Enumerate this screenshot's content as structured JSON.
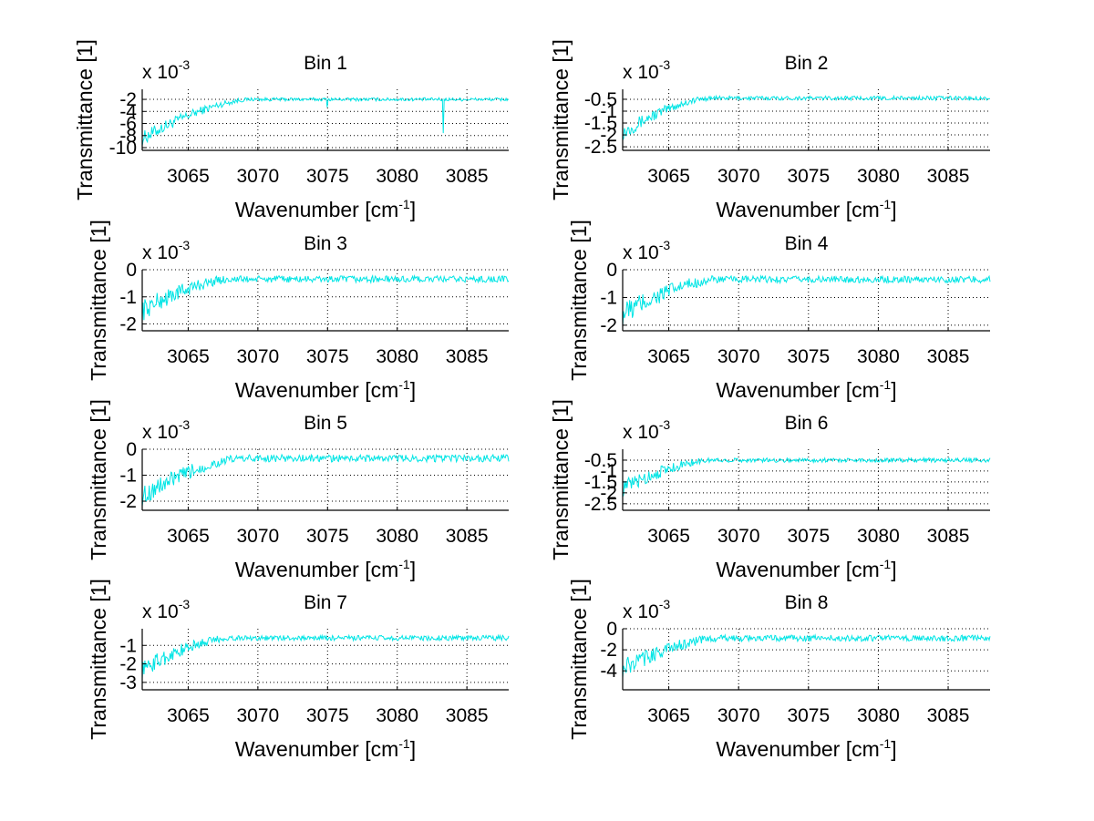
{
  "chart_data": [
    {
      "type": "line",
      "title": "Bin 1",
      "xlabel": "Wavenumber [cm-1]",
      "xlabel_main": "Wavenumber [cm",
      "xlabel_sup": "-1",
      "xlabel_end": "]",
      "ylabel": "Transmittance [1]",
      "y_multiplier": "x 10",
      "y_multiplier_exp": "-3",
      "xlim": [
        3061.7,
        3088.0
      ],
      "ylim": [
        -10.45,
        -0.33
      ],
      "xticks": [
        3065,
        3070,
        3075,
        3080,
        3085
      ],
      "xtick_labels": [
        "3065",
        "3070",
        "3075",
        "3080",
        "3085"
      ],
      "yticks": [
        -2,
        -4,
        -6,
        -8,
        -10
      ],
      "ytick_labels": [
        "-2",
        "-4",
        "-6",
        "-8",
        "-10"
      ],
      "grid": true,
      "line_color": "#00e5e5",
      "profile": {
        "start": -8.5,
        "plateau": -2.0,
        "rise_end": 3069.5,
        "noise_early": 2.4,
        "noise_late": 0.55,
        "dips": [
          [
            3075.0,
            -3.3
          ],
          [
            3083.3,
            -7.6
          ]
        ]
      }
    },
    {
      "type": "line",
      "title": "Bin 2",
      "xlabel": "Wavenumber [cm-1]",
      "xlabel_main": "Wavenumber [cm",
      "xlabel_sup": "-1",
      "xlabel_end": "]",
      "ylabel": "Transmittance [1]",
      "y_multiplier": "x 10",
      "y_multiplier_exp": "-3",
      "xlim": [
        3061.7,
        3088.0
      ],
      "ylim": [
        -2.65,
        -0.08
      ],
      "xticks": [
        3065,
        3070,
        3075,
        3080,
        3085
      ],
      "xtick_labels": [
        "3065",
        "3070",
        "3075",
        "3080",
        "3085"
      ],
      "yticks": [
        -0.5,
        -1,
        -1.5,
        -2,
        -2.5
      ],
      "ytick_labels": [
        "-0.5",
        "-1",
        "-1.5",
        "-2",
        "-2.5"
      ],
      "grid": true,
      "line_color": "#00e5e5",
      "profile": {
        "start": -1.9,
        "plateau": -0.45,
        "rise_end": 3068.0,
        "noise_early": 0.65,
        "noise_late": 0.17,
        "dips": []
      }
    },
    {
      "type": "line",
      "title": "Bin 3",
      "xlabel": "Wavenumber [cm-1]",
      "xlabel_main": "Wavenumber [cm",
      "xlabel_sup": "-1",
      "xlabel_end": "]",
      "ylabel": "Transmittance [1]",
      "y_multiplier": "x 10",
      "y_multiplier_exp": "-3",
      "xlim": [
        3061.7,
        3088.0
      ],
      "ylim": [
        -2.25,
        0.0
      ],
      "xticks": [
        3065,
        3070,
        3075,
        3080,
        3085
      ],
      "xtick_labels": [
        "3065",
        "3070",
        "3075",
        "3080",
        "3085"
      ],
      "yticks": [
        0,
        -1,
        -2
      ],
      "ytick_labels": [
        "0",
        "-1",
        "-2"
      ],
      "grid": true,
      "line_color": "#00e5e5",
      "profile": {
        "start": -1.5,
        "plateau": -0.35,
        "rise_end": 3068.0,
        "noise_early": 0.8,
        "noise_late": 0.25,
        "dips": []
      }
    },
    {
      "type": "line",
      "title": "Bin 4",
      "xlabel": "Wavenumber [cm-1]",
      "xlabel_main": "Wavenumber [cm",
      "xlabel_sup": "-1",
      "xlabel_end": "]",
      "ylabel": "Transmittance [1]",
      "y_multiplier": "x 10",
      "y_multiplier_exp": "-3",
      "xlim": [
        3061.7,
        3088.0
      ],
      "ylim": [
        -2.2,
        0.0
      ],
      "xticks": [
        3065,
        3070,
        3075,
        3080,
        3085
      ],
      "xtick_labels": [
        "3065",
        "3070",
        "3075",
        "3080",
        "3085"
      ],
      "yticks": [
        0,
        -1,
        -2
      ],
      "ytick_labels": [
        "0",
        "-1",
        "-2"
      ],
      "grid": true,
      "line_color": "#00e5e5",
      "profile": {
        "start": -1.6,
        "plateau": -0.35,
        "rise_end": 3068.5,
        "noise_early": 0.9,
        "noise_late": 0.25,
        "dips": []
      }
    },
    {
      "type": "line",
      "title": "Bin 5",
      "xlabel": "Wavenumber [cm-1]",
      "xlabel_main": "Wavenumber [cm",
      "xlabel_sup": "-1",
      "xlabel_end": "]",
      "ylabel": "Transmittance [1]",
      "y_multiplier": "x 10",
      "y_multiplier_exp": "-3",
      "xlim": [
        3061.7,
        3088.0
      ],
      "ylim": [
        -2.35,
        0.0
      ],
      "xticks": [
        3065,
        3070,
        3075,
        3080,
        3085
      ],
      "xtick_labels": [
        "3065",
        "3070",
        "3075",
        "3080",
        "3085"
      ],
      "yticks": [
        0,
        -1,
        -2
      ],
      "ytick_labels": [
        "0",
        "-1",
        "-2"
      ],
      "grid": true,
      "line_color": "#00e5e5",
      "profile": {
        "start": -1.8,
        "plateau": -0.35,
        "rise_end": 3069.0,
        "noise_early": 0.8,
        "noise_late": 0.28,
        "dips": []
      }
    },
    {
      "type": "line",
      "title": "Bin 6",
      "xlabel": "Wavenumber [cm-1]",
      "xlabel_main": "Wavenumber [cm",
      "xlabel_sup": "-1",
      "xlabel_end": "]",
      "ylabel": "Transmittance [1]",
      "y_multiplier": "x 10",
      "y_multiplier_exp": "-3",
      "xlim": [
        3061.7,
        3088.0
      ],
      "ylim": [
        -2.8,
        0.0
      ],
      "xticks": [
        3065,
        3070,
        3075,
        3080,
        3085
      ],
      "xtick_labels": [
        "3065",
        "3070",
        "3075",
        "3080",
        "3085"
      ],
      "yticks": [
        -0.5,
        -1,
        -1.5,
        -2,
        -2.5
      ],
      "ytick_labels": [
        "-0.5",
        "-1",
        "-1.5",
        "-2",
        "-2.5"
      ],
      "grid": true,
      "line_color": "#00e5e5",
      "profile": {
        "start": -1.8,
        "plateau": -0.5,
        "rise_end": 3068.0,
        "noise_early": 0.8,
        "noise_late": 0.2,
        "dips": []
      }
    },
    {
      "type": "line",
      "title": "Bin 7",
      "xlabel": "Wavenumber [cm-1]",
      "xlabel_main": "Wavenumber [cm",
      "xlabel_sup": "-1",
      "xlabel_end": "]",
      "ylabel": "Transmittance [1]",
      "y_multiplier": "x 10",
      "y_multiplier_exp": "-3",
      "xlim": [
        3061.7,
        3088.0
      ],
      "ylim": [
        -3.4,
        -0.1
      ],
      "xticks": [
        3065,
        3070,
        3075,
        3080,
        3085
      ],
      "xtick_labels": [
        "3065",
        "3070",
        "3075",
        "3080",
        "3085"
      ],
      "yticks": [
        -1,
        -2,
        -3
      ],
      "ytick_labels": [
        "-1",
        "-2",
        "-3"
      ],
      "grid": true,
      "line_color": "#00e5e5",
      "profile": {
        "start": -2.3,
        "plateau": -0.6,
        "rise_end": 3068.0,
        "noise_early": 1.0,
        "noise_late": 0.28,
        "dips": []
      }
    },
    {
      "type": "line",
      "title": "Bin 8",
      "xlabel": "Wavenumber [cm-1]",
      "xlabel_main": "Wavenumber [cm",
      "xlabel_sup": "-1",
      "xlabel_end": "]",
      "ylabel": "Transmittance [1]",
      "y_multiplier": "x 10",
      "y_multiplier_exp": "-3",
      "xlim": [
        3061.7,
        3088.0
      ],
      "ylim": [
        -5.8,
        0.0
      ],
      "xticks": [
        3065,
        3070,
        3075,
        3080,
        3085
      ],
      "xtick_labels": [
        "3065",
        "3070",
        "3075",
        "3080",
        "3085"
      ],
      "yticks": [
        0,
        -2,
        -4
      ],
      "ytick_labels": [
        "0",
        "-2",
        "-4"
      ],
      "grid": true,
      "line_color": "#00e5e5",
      "profile": {
        "start": -3.8,
        "plateau": -0.9,
        "rise_end": 3068.5,
        "noise_early": 1.8,
        "noise_late": 0.6,
        "dips": []
      }
    }
  ]
}
